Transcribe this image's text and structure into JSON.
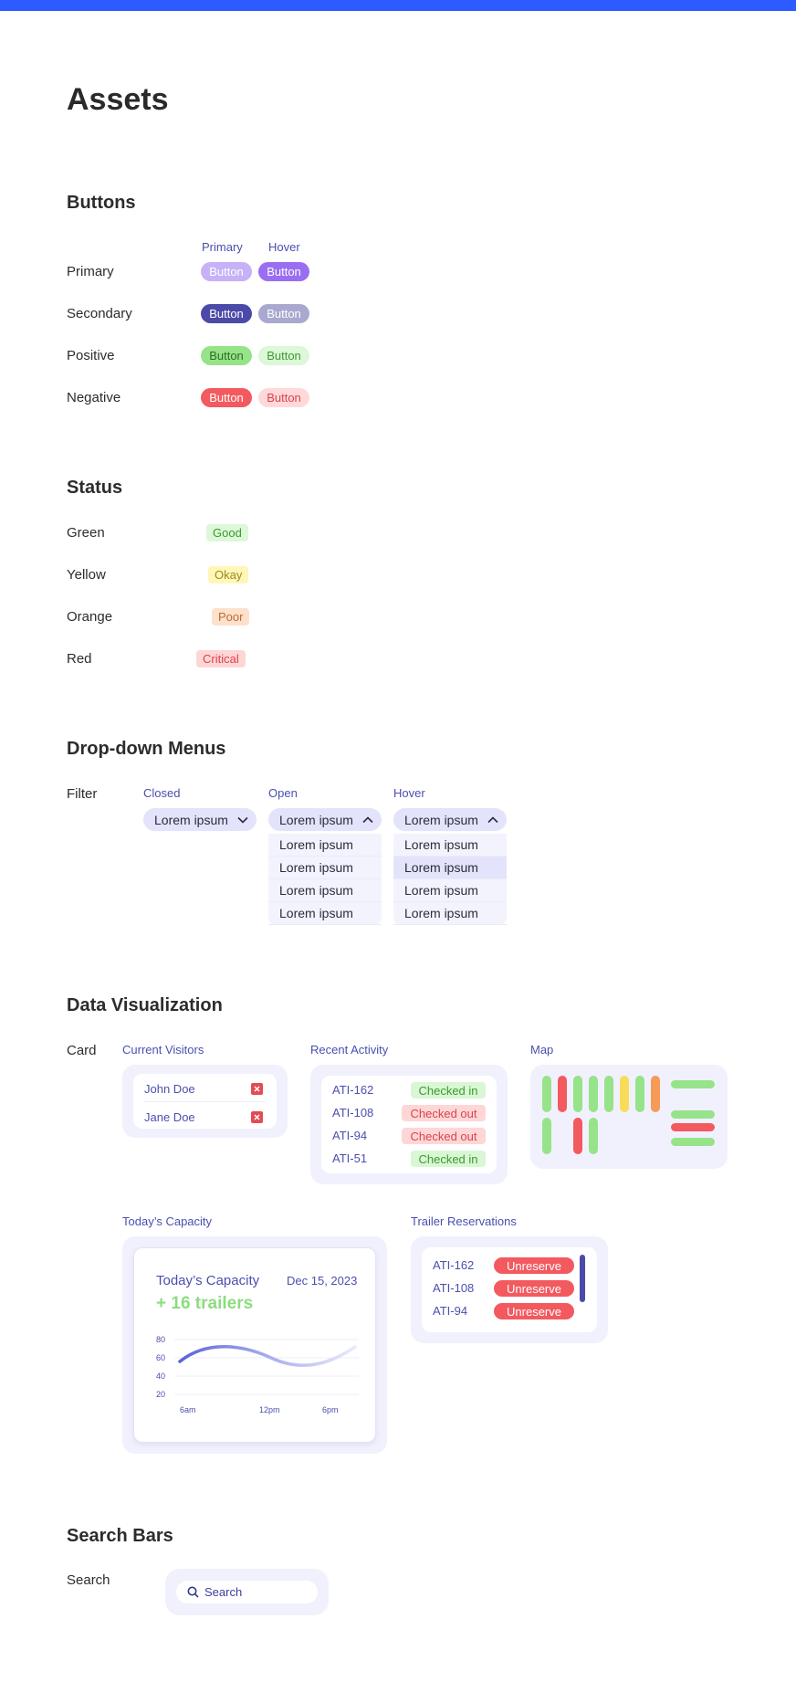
{
  "page": {
    "title": "Assets"
  },
  "buttons": {
    "title": "Buttons",
    "col_primary": "Primary",
    "col_hover": "Hover",
    "rows": [
      {
        "label": "Primary",
        "btn": "Button",
        "hover": "Button"
      },
      {
        "label": "Secondary",
        "btn": "Button",
        "hover": "Button"
      },
      {
        "label": "Positive",
        "btn": "Button",
        "hover": "Button"
      },
      {
        "label": "Negative",
        "btn": "Button",
        "hover": "Button"
      }
    ]
  },
  "status": {
    "title": "Status",
    "rows": [
      {
        "label": "Green",
        "badge": "Good"
      },
      {
        "label": "Yellow",
        "badge": "Okay"
      },
      {
        "label": "Orange",
        "badge": "Poor"
      },
      {
        "label": "Red",
        "badge": "Critical"
      }
    ]
  },
  "dropdowns": {
    "title": "Drop-down Menus",
    "row_label": "Filter",
    "col_closed": "Closed",
    "col_open": "Open",
    "col_hover": "Hover",
    "value": "Lorem ipsum",
    "options": [
      "Lorem ipsum",
      "Lorem ipsum",
      "Lorem ipsum",
      "Lorem ipsum"
    ]
  },
  "dataviz": {
    "title": "Data Visualization",
    "row_label": "Card",
    "visitors": {
      "title": "Current Visitors",
      "names": [
        "John Doe",
        "Jane Doe"
      ]
    },
    "activity": {
      "title": "Recent Activity",
      "rows": [
        {
          "id": "ATI-162",
          "status": "Checked in"
        },
        {
          "id": "ATI-108",
          "status": "Checked out"
        },
        {
          "id": "ATI-94",
          "status": "Checked out"
        },
        {
          "id": "ATI-51",
          "status": "Checked in"
        }
      ]
    },
    "map": {
      "title": "Map"
    },
    "capacity": {
      "section_label": "Today’s Capacity",
      "title": "Today’s Capacity",
      "date": "Dec 15, 2023",
      "headline": "+ 16 trailers",
      "chart_data": {
        "type": "line",
        "x": [
          "6am",
          "12pm",
          "6pm"
        ],
        "yticks": [
          80,
          60,
          40,
          20
        ],
        "ylim": [
          20,
          80
        ]
      }
    },
    "reservations": {
      "title": "Trailer Reservations",
      "rows": [
        {
          "id": "ATI-162",
          "action": "Unreserve"
        },
        {
          "id": "ATI-108",
          "action": "Unreserve"
        },
        {
          "id": "ATI-94",
          "action": "Unreserve"
        }
      ]
    }
  },
  "search": {
    "title": "Search Bars",
    "row_label": "Search",
    "placeholder": "Search"
  },
  "colors": {
    "brand": "#2d5bff",
    "primary": "#9a6ef2",
    "secondary": "#4c4aa8",
    "positive": "#96e38a",
    "negative": "#f25a5f"
  }
}
